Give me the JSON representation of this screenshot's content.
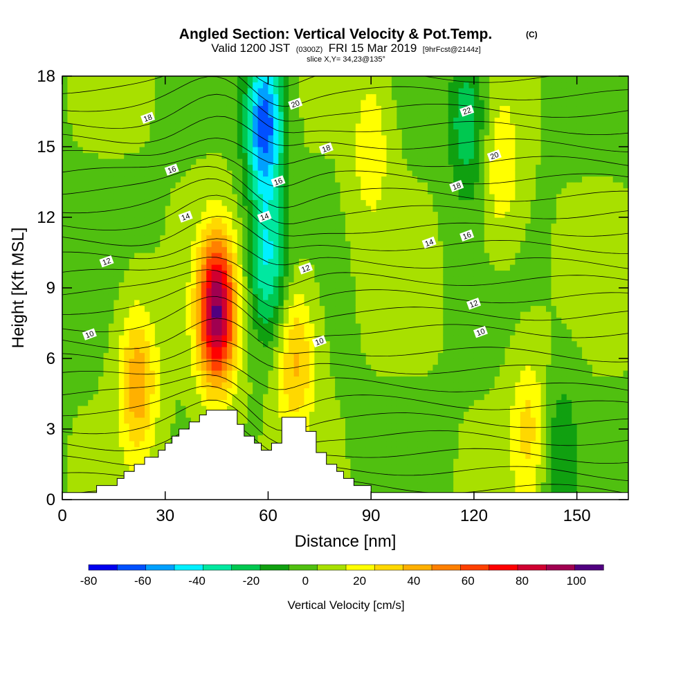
{
  "chart_data": {
    "type": "heatmap",
    "title": "Angled Section: Vertical Velocity & Pot.Temp.",
    "title_mark": "(C)",
    "subtitle": {
      "valid": "Valid 1200 JST",
      "utc": "(0300Z)",
      "date": "FRI 15 Mar 2019",
      "fcst": "[9hrFcst@2144z]"
    },
    "slice_label": "slice X,Y= 34,23@135°",
    "xlabel": "Distance [nm]",
    "ylabel": "Height [Kft MSL]",
    "xlim": [
      0,
      165
    ],
    "ylim": [
      0,
      18
    ],
    "xticks": [
      "0",
      "30",
      "60",
      "90",
      "120",
      "150"
    ],
    "yticks": [
      "0",
      "3",
      "6",
      "9",
      "12",
      "15",
      "18"
    ],
    "colorbar": {
      "label": "Vertical Velocity [cm/s]",
      "range": [
        -80,
        110
      ],
      "ticks": [
        "-80",
        "-60",
        "-40",
        "-20",
        "0",
        "20",
        "40",
        "60",
        "80",
        "100"
      ],
      "colors": [
        "#0000ee",
        "#0050ff",
        "#00a0ff",
        "#00f0ff",
        "#00e8a0",
        "#00c850",
        "#10a010",
        "#50c010",
        "#a8e000",
        "#ffff00",
        "#ffd800",
        "#ffb000",
        "#ff8000",
        "#ff4000",
        "#ff0000",
        "#d00030",
        "#a00050",
        "#500080"
      ]
    },
    "features": [
      {
        "x": 22,
        "y": 5,
        "w": 40
      },
      {
        "x": 45,
        "y": 8,
        "w": 95
      },
      {
        "x": 59,
        "y": 16,
        "w": -70
      },
      {
        "x": 60,
        "y": 10,
        "w": -40
      },
      {
        "x": 68,
        "y": 6,
        "w": 35
      },
      {
        "x": 90,
        "y": 15,
        "w": 20
      },
      {
        "x": 118,
        "y": 16,
        "w": -30
      },
      {
        "x": 128,
        "y": 14,
        "w": 20
      },
      {
        "x": 136,
        "y": 3,
        "w": 25
      },
      {
        "x": 145,
        "y": 2,
        "w": -20
      }
    ],
    "theta_labels": [
      {
        "text": "10",
        "x": 8,
        "y": 7
      },
      {
        "text": "12",
        "x": 13,
        "y": 10.1
      },
      {
        "text": "14",
        "x": 36,
        "y": 12
      },
      {
        "text": "16",
        "x": 32,
        "y": 14
      },
      {
        "text": "18",
        "x": 25,
        "y": 16.2
      },
      {
        "text": "20",
        "x": 68,
        "y": 16.8
      },
      {
        "text": "18",
        "x": 77,
        "y": 14.9
      },
      {
        "text": "16",
        "x": 63,
        "y": 13.5
      },
      {
        "text": "14",
        "x": 59,
        "y": 12
      },
      {
        "text": "12",
        "x": 71,
        "y": 9.8
      },
      {
        "text": "10",
        "x": 75,
        "y": 6.7
      },
      {
        "text": "22",
        "x": 118,
        "y": 16.5
      },
      {
        "text": "20",
        "x": 126,
        "y": 14.6
      },
      {
        "text": "18",
        "x": 115,
        "y": 13.3
      },
      {
        "text": "16",
        "x": 118,
        "y": 11.2
      },
      {
        "text": "14",
        "x": 107,
        "y": 10.9
      },
      {
        "text": "12",
        "x": 120,
        "y": 8.3
      },
      {
        "text": "10",
        "x": 122,
        "y": 7.1
      }
    ],
    "terrain_profile": [
      [
        0,
        0.3
      ],
      [
        10,
        0.3
      ],
      [
        10,
        0.6
      ],
      [
        16,
        0.6
      ],
      [
        16,
        0.9
      ],
      [
        18,
        0.9
      ],
      [
        18,
        1.2
      ],
      [
        21,
        1.2
      ],
      [
        21,
        1.5
      ],
      [
        24,
        1.5
      ],
      [
        24,
        1.8
      ],
      [
        28,
        1.8
      ],
      [
        28,
        2.1
      ],
      [
        30,
        2.1
      ],
      [
        30,
        2.4
      ],
      [
        32,
        2.4
      ],
      [
        32,
        2.7
      ],
      [
        34,
        2.7
      ],
      [
        34,
        3.0
      ],
      [
        37,
        3.0
      ],
      [
        37,
        3.3
      ],
      [
        40,
        3.3
      ],
      [
        40,
        3.6
      ],
      [
        42,
        3.6
      ],
      [
        42,
        3.8
      ],
      [
        51,
        3.8
      ],
      [
        51,
        3.2
      ],
      [
        53,
        3.2
      ],
      [
        53,
        2.7
      ],
      [
        56,
        2.7
      ],
      [
        56,
        2.4
      ],
      [
        58,
        2.4
      ],
      [
        58,
        2.1
      ],
      [
        61,
        2.1
      ],
      [
        61,
        2.4
      ],
      [
        64,
        2.4
      ],
      [
        64,
        3.5
      ],
      [
        71,
        3.5
      ],
      [
        71,
        2.9
      ],
      [
        74,
        2.9
      ],
      [
        74,
        2.0
      ],
      [
        77,
        2.0
      ],
      [
        77,
        1.5
      ],
      [
        80,
        1.5
      ],
      [
        80,
        1.2
      ],
      [
        82,
        1.2
      ],
      [
        82,
        0.9
      ],
      [
        85,
        0.9
      ],
      [
        85,
        0.6
      ],
      [
        90,
        0.6
      ],
      [
        90,
        0.3
      ],
      [
        165,
        0.3
      ]
    ]
  }
}
